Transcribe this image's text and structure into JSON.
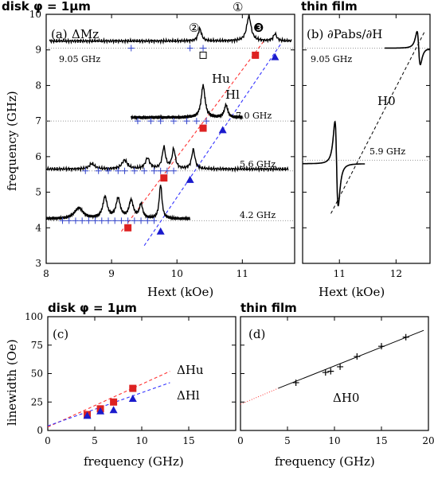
{
  "headers": {
    "top_left": "disk φ = 1μm",
    "top_right": "thin film",
    "bottom_left": "disk φ = 1μm",
    "bottom_right": "thin film"
  },
  "chart_data": [
    {
      "id": "a",
      "type": "line",
      "panel_label": "(a)",
      "panel_quantity": "ΔMz",
      "xlabel": "Hext (kOe)",
      "ylabel": "frequency (GHz)",
      "xlim": [
        8,
        11.8
      ],
      "ylim": [
        3,
        10
      ],
      "xticks": [
        8,
        9,
        10,
        11
      ],
      "yticks": [
        3,
        4,
        5,
        6,
        7,
        8,
        9,
        10
      ],
      "spectra": [
        {
          "name": "9.05 GHz",
          "baseline": 9.25,
          "x_start": 8.05,
          "x_end": 11.75,
          "peaks": [
            {
              "h": 10.35,
              "a": 0.35,
              "w": 0.03
            },
            {
              "h": 11.1,
              "a": 0.7,
              "w": 0.04
            },
            {
              "h": 11.5,
              "a": 0.2,
              "w": 0.03
            }
          ]
        },
        {
          "name": "7.0 GHz",
          "baseline": 7.1,
          "x_start": 9.3,
          "x_end": 11.0,
          "peaks": [
            {
              "h": 10.4,
              "a": 0.9,
              "w": 0.035
            },
            {
              "h": 10.75,
              "a": 0.35,
              "w": 0.03
            }
          ]
        },
        {
          "name": "5.6 GHz",
          "baseline": 5.65,
          "x_start": 8.0,
          "x_end": 11.7,
          "peaks": [
            {
              "h": 8.7,
              "a": 0.15,
              "w": 0.05
            },
            {
              "h": 9.2,
              "a": 0.25,
              "w": 0.05
            },
            {
              "h": 9.55,
              "a": 0.3,
              "w": 0.04
            },
            {
              "h": 9.8,
              "a": 0.6,
              "w": 0.03
            },
            {
              "h": 9.95,
              "a": 0.55,
              "w": 0.03
            },
            {
              "h": 10.25,
              "a": 0.55,
              "w": 0.03
            }
          ]
        },
        {
          "name": "4.2 GHz",
          "baseline": 4.25,
          "x_start": 8.0,
          "x_end": 10.2,
          "peaks": [
            {
              "h": 8.5,
              "a": 0.3,
              "w": 0.08
            },
            {
              "h": 8.9,
              "a": 0.6,
              "w": 0.04
            },
            {
              "h": 9.1,
              "a": 0.55,
              "w": 0.04
            },
            {
              "h": 9.3,
              "a": 0.5,
              "w": 0.04
            },
            {
              "h": 9.45,
              "a": 0.4,
              "w": 0.03
            },
            {
              "h": 9.75,
              "a": 0.95,
              "w": 0.025
            }
          ]
        }
      ],
      "spectrum_labels": [
        "9.05 GHz",
        "7.0 GHz",
        "5.6 GHz",
        "4.2 GHz"
      ],
      "reference_lines_y": [
        9.05,
        7.0,
        5.6,
        4.2
      ],
      "squares_u": [
        [
          9.25,
          4.0
        ],
        [
          9.8,
          5.4
        ],
        [
          10.4,
          6.8
        ],
        [
          11.2,
          8.85
        ]
      ],
      "triangles_l": [
        [
          9.75,
          3.9
        ],
        [
          10.2,
          5.35
        ],
        [
          10.7,
          6.75
        ],
        [
          11.5,
          8.8
        ]
      ],
      "open_square": [
        10.4,
        8.85
      ],
      "cross_markers": [
        [
          9.3,
          9.05
        ],
        [
          10.2,
          9.05
        ],
        [
          10.4,
          9.05
        ],
        [
          9.4,
          7.0
        ],
        [
          9.6,
          7.0
        ],
        [
          9.75,
          7.0
        ],
        [
          9.95,
          7.0
        ],
        [
          10.15,
          7.0
        ],
        [
          10.3,
          7.0
        ],
        [
          10.45,
          7.0
        ],
        [
          8.6,
          5.6
        ],
        [
          8.8,
          5.6
        ],
        [
          8.95,
          5.6
        ],
        [
          9.1,
          5.6
        ],
        [
          9.2,
          5.6
        ],
        [
          9.35,
          5.6
        ],
        [
          9.5,
          5.6
        ],
        [
          9.65,
          5.6
        ],
        [
          9.75,
          5.6
        ],
        [
          9.85,
          5.6
        ],
        [
          9.95,
          5.6
        ],
        [
          8.25,
          4.2
        ],
        [
          8.35,
          4.2
        ],
        [
          8.45,
          4.2
        ],
        [
          8.55,
          4.2
        ],
        [
          8.65,
          4.2
        ],
        [
          8.75,
          4.2
        ],
        [
          8.85,
          4.2
        ],
        [
          8.95,
          4.2
        ],
        [
          9.05,
          4.2
        ],
        [
          9.15,
          4.2
        ],
        [
          9.25,
          4.2
        ],
        [
          9.35,
          4.2
        ],
        [
          9.45,
          4.2
        ],
        [
          9.55,
          4.2
        ],
        [
          9.65,
          4.2
        ]
      ],
      "dispersion_u": {
        "label": "Hu",
        "x": [
          9.15,
          11.35
        ],
        "y": [
          3.9,
          9.3
        ]
      },
      "dispersion_l": {
        "label": "Hl",
        "x": [
          9.5,
          11.6
        ],
        "y": [
          3.5,
          9.2
        ]
      },
      "peak_markers": [
        "②",
        "①",
        "❸"
      ]
    },
    {
      "id": "b",
      "type": "line",
      "panel_label": "(b)",
      "panel_quantity": "∂Pabs/∂H",
      "xlabel": "Hext (kOe)",
      "xlim": [
        10.35,
        12.6
      ],
      "ylim": [
        3,
        10
      ],
      "xticks": [
        11,
        12
      ],
      "spectrum_labels": [
        "9.05 GHz",
        "5.9 GHz"
      ],
      "reference_lines_y": [
        9.05,
        5.9
      ],
      "line_label": "H0",
      "dispersion_H0": {
        "x": [
          10.85,
          12.5
        ],
        "y": [
          4.4,
          9.5
        ]
      },
      "derivative_traces": [
        {
          "center": 12.4,
          "amp": 0.55,
          "w": 0.05,
          "baseline": 9.05,
          "x_start": 11.8,
          "x_end": 12.6
        },
        {
          "center": 10.95,
          "amp": 1.4,
          "w": 0.05,
          "baseline": 5.8,
          "x_start": 10.35,
          "x_end": 11.45
        }
      ]
    },
    {
      "id": "c",
      "type": "scatter",
      "panel_label": "(c)",
      "xlabel": "frequency (GHz)",
      "ylabel": "linewidth (Oe)",
      "xlim": [
        0,
        20
      ],
      "ylim": [
        0,
        100
      ],
      "xticks": [
        0,
        5,
        10,
        15
      ],
      "yticks": [
        0,
        25,
        50,
        75,
        100
      ],
      "series": [
        {
          "name": "ΔHu",
          "color": "#dd2222",
          "marker": "square",
          "x": [
            4.2,
            5.6,
            7.0,
            9.05
          ],
          "y": [
            14,
            19,
            25,
            37
          ]
        },
        {
          "name": "ΔHl",
          "color": "#1a1acc",
          "marker": "triangle",
          "x": [
            4.2,
            5.6,
            7.0,
            9.05
          ],
          "y": [
            13,
            17,
            18,
            28
          ]
        }
      ],
      "fits": [
        {
          "series": "ΔHu",
          "color": "#ff3333",
          "x": [
            0,
            13
          ],
          "y": [
            3,
            52
          ]
        },
        {
          "series": "ΔHl",
          "color": "#3333ff",
          "x": [
            0,
            13
          ],
          "y": [
            4,
            42
          ]
        }
      ]
    },
    {
      "id": "d",
      "type": "scatter",
      "panel_label": "(d)",
      "xlabel": "frequency (GHz)",
      "xlim": [
        0,
        20
      ],
      "ylim": [
        0,
        100
      ],
      "xticks": [
        0,
        5,
        10,
        15,
        20
      ],
      "series": [
        {
          "name": "ΔH0",
          "color": "#000000",
          "marker": "plus",
          "x": [
            5.9,
            9.05,
            9.6,
            10.6,
            12.4,
            15.0,
            17.6
          ],
          "y": [
            42,
            51,
            52,
            56,
            65,
            74,
            82
          ]
        }
      ],
      "fits": [
        {
          "series": "ΔH0",
          "color": "#000000",
          "x": [
            4,
            19.5
          ],
          "y": [
            37,
            88
          ]
        },
        {
          "series": "ΔH0 extrapolation",
          "color": "#ff3333",
          "dash": "dotted",
          "x": [
            0,
            4
          ],
          "y": [
            23,
            37
          ]
        }
      ]
    }
  ]
}
